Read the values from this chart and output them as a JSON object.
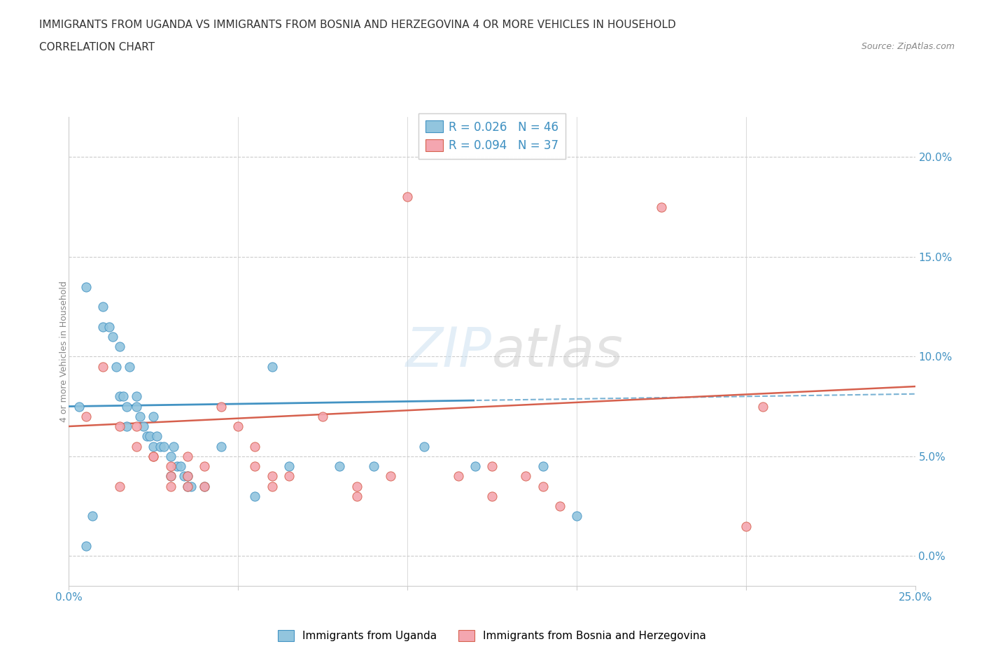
{
  "title_line1": "IMMIGRANTS FROM UGANDA VS IMMIGRANTS FROM BOSNIA AND HERZEGOVINA 4 OR MORE VEHICLES IN HOUSEHOLD",
  "title_line2": "CORRELATION CHART",
  "source": "Source: ZipAtlas.com",
  "ylabel": "4 or more Vehicles in Household",
  "ytick_values": [
    0.0,
    5.0,
    10.0,
    15.0,
    20.0
  ],
  "xlim": [
    0.0,
    25.0
  ],
  "ylim": [
    -1.5,
    22.0
  ],
  "legend_label1": "Immigrants from Uganda",
  "legend_label2": "Immigrants from Bosnia and Herzegovina",
  "R1": "0.026",
  "N1": "46",
  "R2": "0.094",
  "N2": "37",
  "color1": "#92c5de",
  "color2": "#f4a6b0",
  "color1_edge": "#4393c3",
  "color2_edge": "#d6604d",
  "line1_color": "#4393c3",
  "line2_color": "#d6604d",
  "watermark": "ZIPatlas",
  "uganda_x": [
    0.3,
    0.5,
    0.7,
    1.0,
    1.0,
    1.2,
    1.3,
    1.4,
    1.5,
    1.5,
    1.6,
    1.7,
    1.7,
    1.8,
    2.0,
    2.0,
    2.1,
    2.2,
    2.3,
    2.4,
    2.5,
    2.5,
    2.6,
    2.7,
    2.8,
    3.0,
    3.0,
    3.1,
    3.2,
    3.3,
    3.4,
    3.5,
    3.5,
    3.6,
    4.0,
    4.5,
    5.5,
    6.0,
    6.5,
    8.0,
    9.0,
    10.5,
    12.0,
    14.0,
    15.0,
    0.5
  ],
  "uganda_y": [
    7.5,
    13.5,
    2.0,
    12.5,
    11.5,
    11.5,
    11.0,
    9.5,
    10.5,
    8.0,
    8.0,
    7.5,
    6.5,
    9.5,
    8.0,
    7.5,
    7.0,
    6.5,
    6.0,
    6.0,
    7.0,
    5.5,
    6.0,
    5.5,
    5.5,
    5.0,
    4.0,
    5.5,
    4.5,
    4.5,
    4.0,
    4.0,
    3.5,
    3.5,
    3.5,
    5.5,
    3.0,
    9.5,
    4.5,
    4.5,
    4.5,
    5.5,
    4.5,
    4.5,
    2.0,
    0.5
  ],
  "bosnia_x": [
    0.5,
    1.0,
    1.5,
    1.5,
    2.0,
    2.0,
    2.5,
    2.5,
    3.0,
    3.0,
    3.0,
    3.5,
    3.5,
    3.5,
    4.0,
    4.0,
    4.5,
    5.0,
    5.5,
    5.5,
    6.0,
    6.0,
    6.5,
    7.5,
    8.5,
    9.5,
    10.0,
    11.5,
    12.5,
    13.5,
    14.0,
    17.5,
    20.5,
    12.5,
    14.5,
    20.0,
    8.5
  ],
  "bosnia_y": [
    7.0,
    9.5,
    6.5,
    3.5,
    6.5,
    5.5,
    5.0,
    5.0,
    4.5,
    4.0,
    3.5,
    5.0,
    4.0,
    3.5,
    4.5,
    3.5,
    7.5,
    6.5,
    4.5,
    5.5,
    4.0,
    3.5,
    4.0,
    7.0,
    3.5,
    4.0,
    18.0,
    4.0,
    4.5,
    4.0,
    3.5,
    17.5,
    7.5,
    3.0,
    2.5,
    1.5,
    3.0
  ]
}
